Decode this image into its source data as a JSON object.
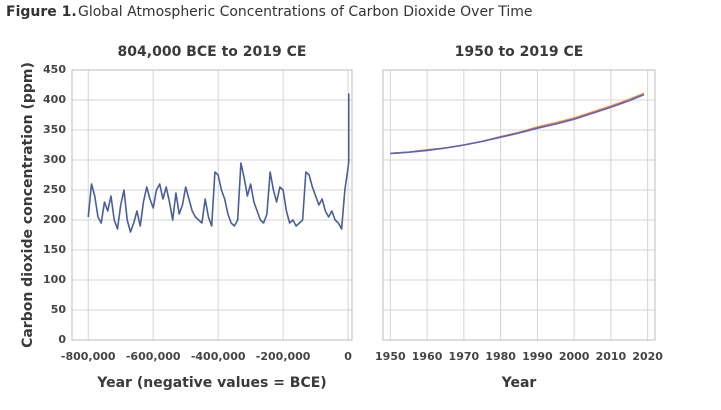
{
  "figure_label": "Figure 1.",
  "figure_title": "Global Atmospheric Concentrations of Carbon Dioxide Over Time",
  "chart_data": [
    {
      "type": "line",
      "title": "804,000 BCE to 2019 CE",
      "xlabel": "Year (negative values = BCE)",
      "ylabel": "Carbon dioxide concentration (ppm)",
      "x": [
        -800000,
        -790000,
        -780000,
        -770000,
        -760000,
        -750000,
        -740000,
        -730000,
        -720000,
        -710000,
        -700000,
        -690000,
        -680000,
        -670000,
        -660000,
        -650000,
        -640000,
        -630000,
        -620000,
        -610000,
        -600000,
        -590000,
        -580000,
        -570000,
        -560000,
        -550000,
        -540000,
        -530000,
        -520000,
        -510000,
        -500000,
        -490000,
        -480000,
        -470000,
        -460000,
        -450000,
        -440000,
        -430000,
        -420000,
        -410000,
        -400000,
        -390000,
        -380000,
        -370000,
        -360000,
        -350000,
        -340000,
        -330000,
        -320000,
        -310000,
        -300000,
        -290000,
        -280000,
        -270000,
        -260000,
        -250000,
        -240000,
        -230000,
        -220000,
        -210000,
        -200000,
        -190000,
        -180000,
        -170000,
        -160000,
        -150000,
        -140000,
        -130000,
        -120000,
        -110000,
        -100000,
        -90000,
        -80000,
        -70000,
        -60000,
        -50000,
        -40000,
        -30000,
        -20000,
        -10000,
        -2000,
        1900,
        1950,
        2019
      ],
      "values": [
        205,
        260,
        240,
        205,
        195,
        230,
        215,
        240,
        200,
        185,
        225,
        250,
        200,
        180,
        195,
        215,
        190,
        230,
        255,
        235,
        220,
        250,
        260,
        235,
        255,
        230,
        200,
        245,
        210,
        225,
        255,
        235,
        215,
        205,
        200,
        195,
        235,
        205,
        190,
        280,
        275,
        250,
        235,
        210,
        195,
        190,
        200,
        295,
        270,
        240,
        260,
        230,
        215,
        200,
        195,
        210,
        280,
        250,
        230,
        255,
        250,
        215,
        195,
        200,
        190,
        195,
        200,
        280,
        275,
        255,
        240,
        225,
        235,
        215,
        205,
        215,
        200,
        195,
        185,
        250,
        280,
        296,
        311,
        411
      ],
      "color": "#4a5f9a",
      "xlim": [
        -850000,
        12000
      ],
      "xticks": [
        {
          "value": -800000,
          "label": "-800,000"
        },
        {
          "value": -600000,
          "label": "-600,000"
        },
        {
          "value": -400000,
          "label": "-400,000"
        },
        {
          "value": -200000,
          "label": "-200,000"
        },
        0
      ],
      "ylim": [
        0,
        450
      ],
      "yticks": [
        0,
        50,
        100,
        150,
        200,
        250,
        300,
        350,
        400,
        450
      ],
      "grid": true
    },
    {
      "type": "line",
      "title": "1950 to 2019 CE",
      "xlabel": "Year",
      "x": [
        1950,
        1955,
        1960,
        1965,
        1970,
        1975,
        1980,
        1985,
        1990,
        1995,
        2000,
        2005,
        2010,
        2015,
        2019
      ],
      "series": [
        {
          "color": "#f28c28",
          "values": [
            311,
            313,
            317,
            320,
            325,
            331,
            339,
            346,
            355,
            362,
            370,
            380,
            390,
            401,
            411
          ]
        },
        {
          "color": "#5b5fc7",
          "values": [
            311,
            313,
            316,
            320,
            325,
            331,
            338,
            345,
            353,
            360,
            368,
            378,
            388,
            399,
            409
          ]
        }
      ],
      "xlim": [
        1948,
        2022
      ],
      "xticks": [
        1950,
        1960,
        1970,
        1980,
        1990,
        2000,
        2010,
        2020
      ],
      "ylim": [
        0,
        450
      ],
      "grid": true
    }
  ]
}
